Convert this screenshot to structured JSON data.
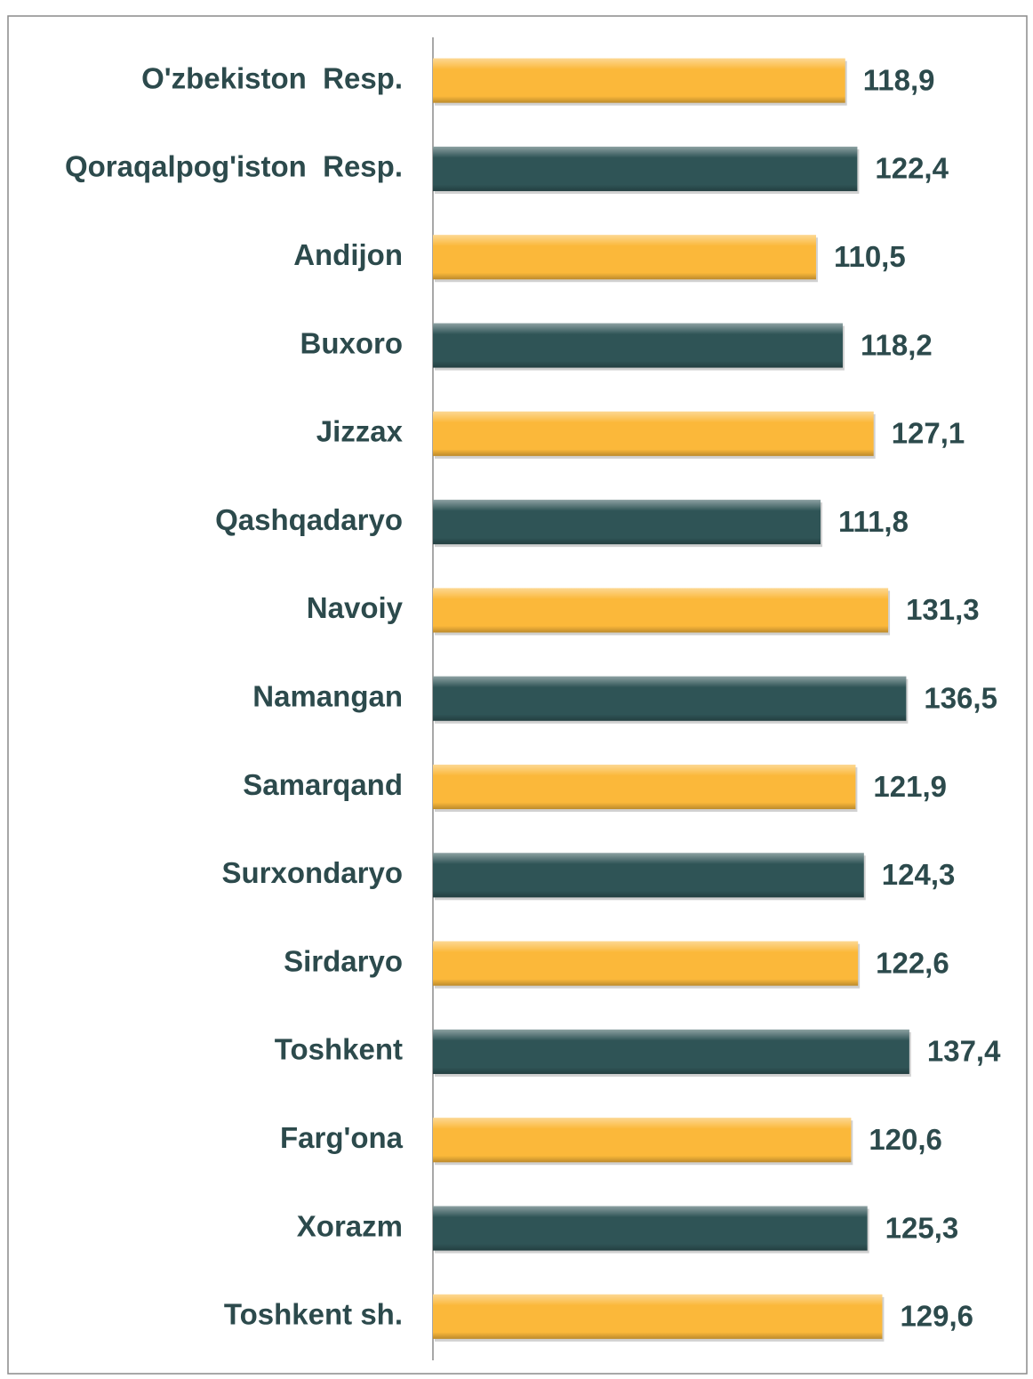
{
  "chart_data": {
    "type": "hbar",
    "categories": [
      "O'zbekiston  Resp.",
      "Qoraqalpog'iston  Resp.",
      "Andijon",
      "Buxoro",
      "Jizzax",
      "Qashqadaryo",
      "Navoiy",
      "Namangan",
      "Samarqand",
      "Surxondaryo",
      "Sirdaryo",
      "Toshkent",
      "Farg'ona",
      "Xorazm",
      "Toshkent sh."
    ],
    "values": [
      118.9,
      122.4,
      110.5,
      118.2,
      127.1,
      111.8,
      131.3,
      136.5,
      121.9,
      124.3,
      122.6,
      137.4,
      120.6,
      125.3,
      129.6
    ],
    "value_labels": [
      "118,9",
      "122,4",
      "110,5",
      "118,2",
      "127,1",
      "111,8",
      "131,3",
      "136,5",
      "121,9",
      "124,3",
      "122,6",
      "137,4",
      "120,6",
      "125,3",
      "129,6"
    ],
    "colors": [
      "#fbb83a",
      "#2f5456",
      "#fbb83a",
      "#2f5456",
      "#fbb83a",
      "#2f5456",
      "#fbb83a",
      "#2f5456",
      "#fbb83a",
      "#2f5456",
      "#fbb83a",
      "#2f5456",
      "#fbb83a",
      "#2f5456",
      "#fbb83a"
    ],
    "xlim": [
      0,
      160
    ]
  }
}
